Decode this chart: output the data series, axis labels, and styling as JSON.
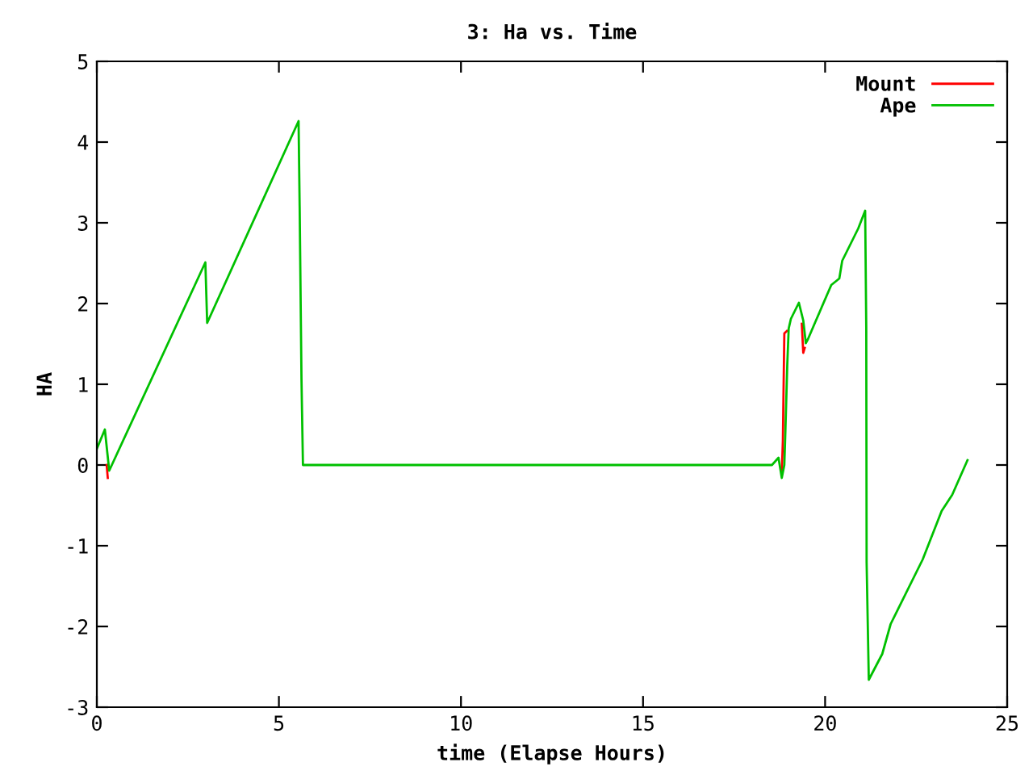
{
  "chart_data": {
    "type": "line",
    "title": "3: Ha vs. Time",
    "xlabel": "time (Elapse Hours)",
    "ylabel": "HA",
    "xlim": [
      0,
      25
    ],
    "ylim": [
      -3,
      5
    ],
    "xticks": [
      0,
      5,
      10,
      15,
      20,
      25
    ],
    "yticks": [
      -3,
      -2,
      -1,
      0,
      1,
      2,
      3,
      4,
      5
    ],
    "grid": false,
    "legend": "top right",
    "marker": "none",
    "line_style": "solid",
    "series": [
      {
        "name": "Mount",
        "color": "#ff0000",
        "x": [
          0.27,
          0.3,
          5.0,
          18.81,
          18.84,
          18.88,
          18.95,
          19.2,
          19.36,
          19.4,
          19.44
        ],
        "values": [
          0.0,
          -0.16,
          null,
          -0.1,
          0.3,
          1.63,
          1.66,
          null,
          1.75,
          1.39,
          1.45
        ]
      },
      {
        "name": "Ape",
        "color": "#00c000",
        "x": [
          0,
          0.22,
          0.34,
          2.98,
          3.03,
          5.54,
          5.57,
          5.62,
          5.66,
          18.54,
          18.72,
          18.81,
          18.88,
          18.91,
          18.96,
          19.0,
          19.06,
          19.28,
          19.4,
          19.47,
          19.53,
          19.72,
          20.17,
          20.39,
          20.47,
          20.91,
          21.1,
          21.13,
          21.14,
          21.2,
          21.57,
          21.8,
          22.68,
          23.2,
          23.49,
          23.91
        ],
        "values": [
          0.2,
          0.44,
          -0.07,
          2.51,
          1.76,
          4.26,
          3.19,
          1.06,
          0,
          0,
          0.09,
          -0.16,
          0,
          0.43,
          1.23,
          1.69,
          1.81,
          2.01,
          1.79,
          1.51,
          1.56,
          1.76,
          2.23,
          2.31,
          2.53,
          2.93,
          3.15,
          1.71,
          -1.21,
          -2.66,
          -2.34,
          -1.97,
          -1.17,
          -0.57,
          -0.37,
          0.06
        ]
      }
    ]
  }
}
